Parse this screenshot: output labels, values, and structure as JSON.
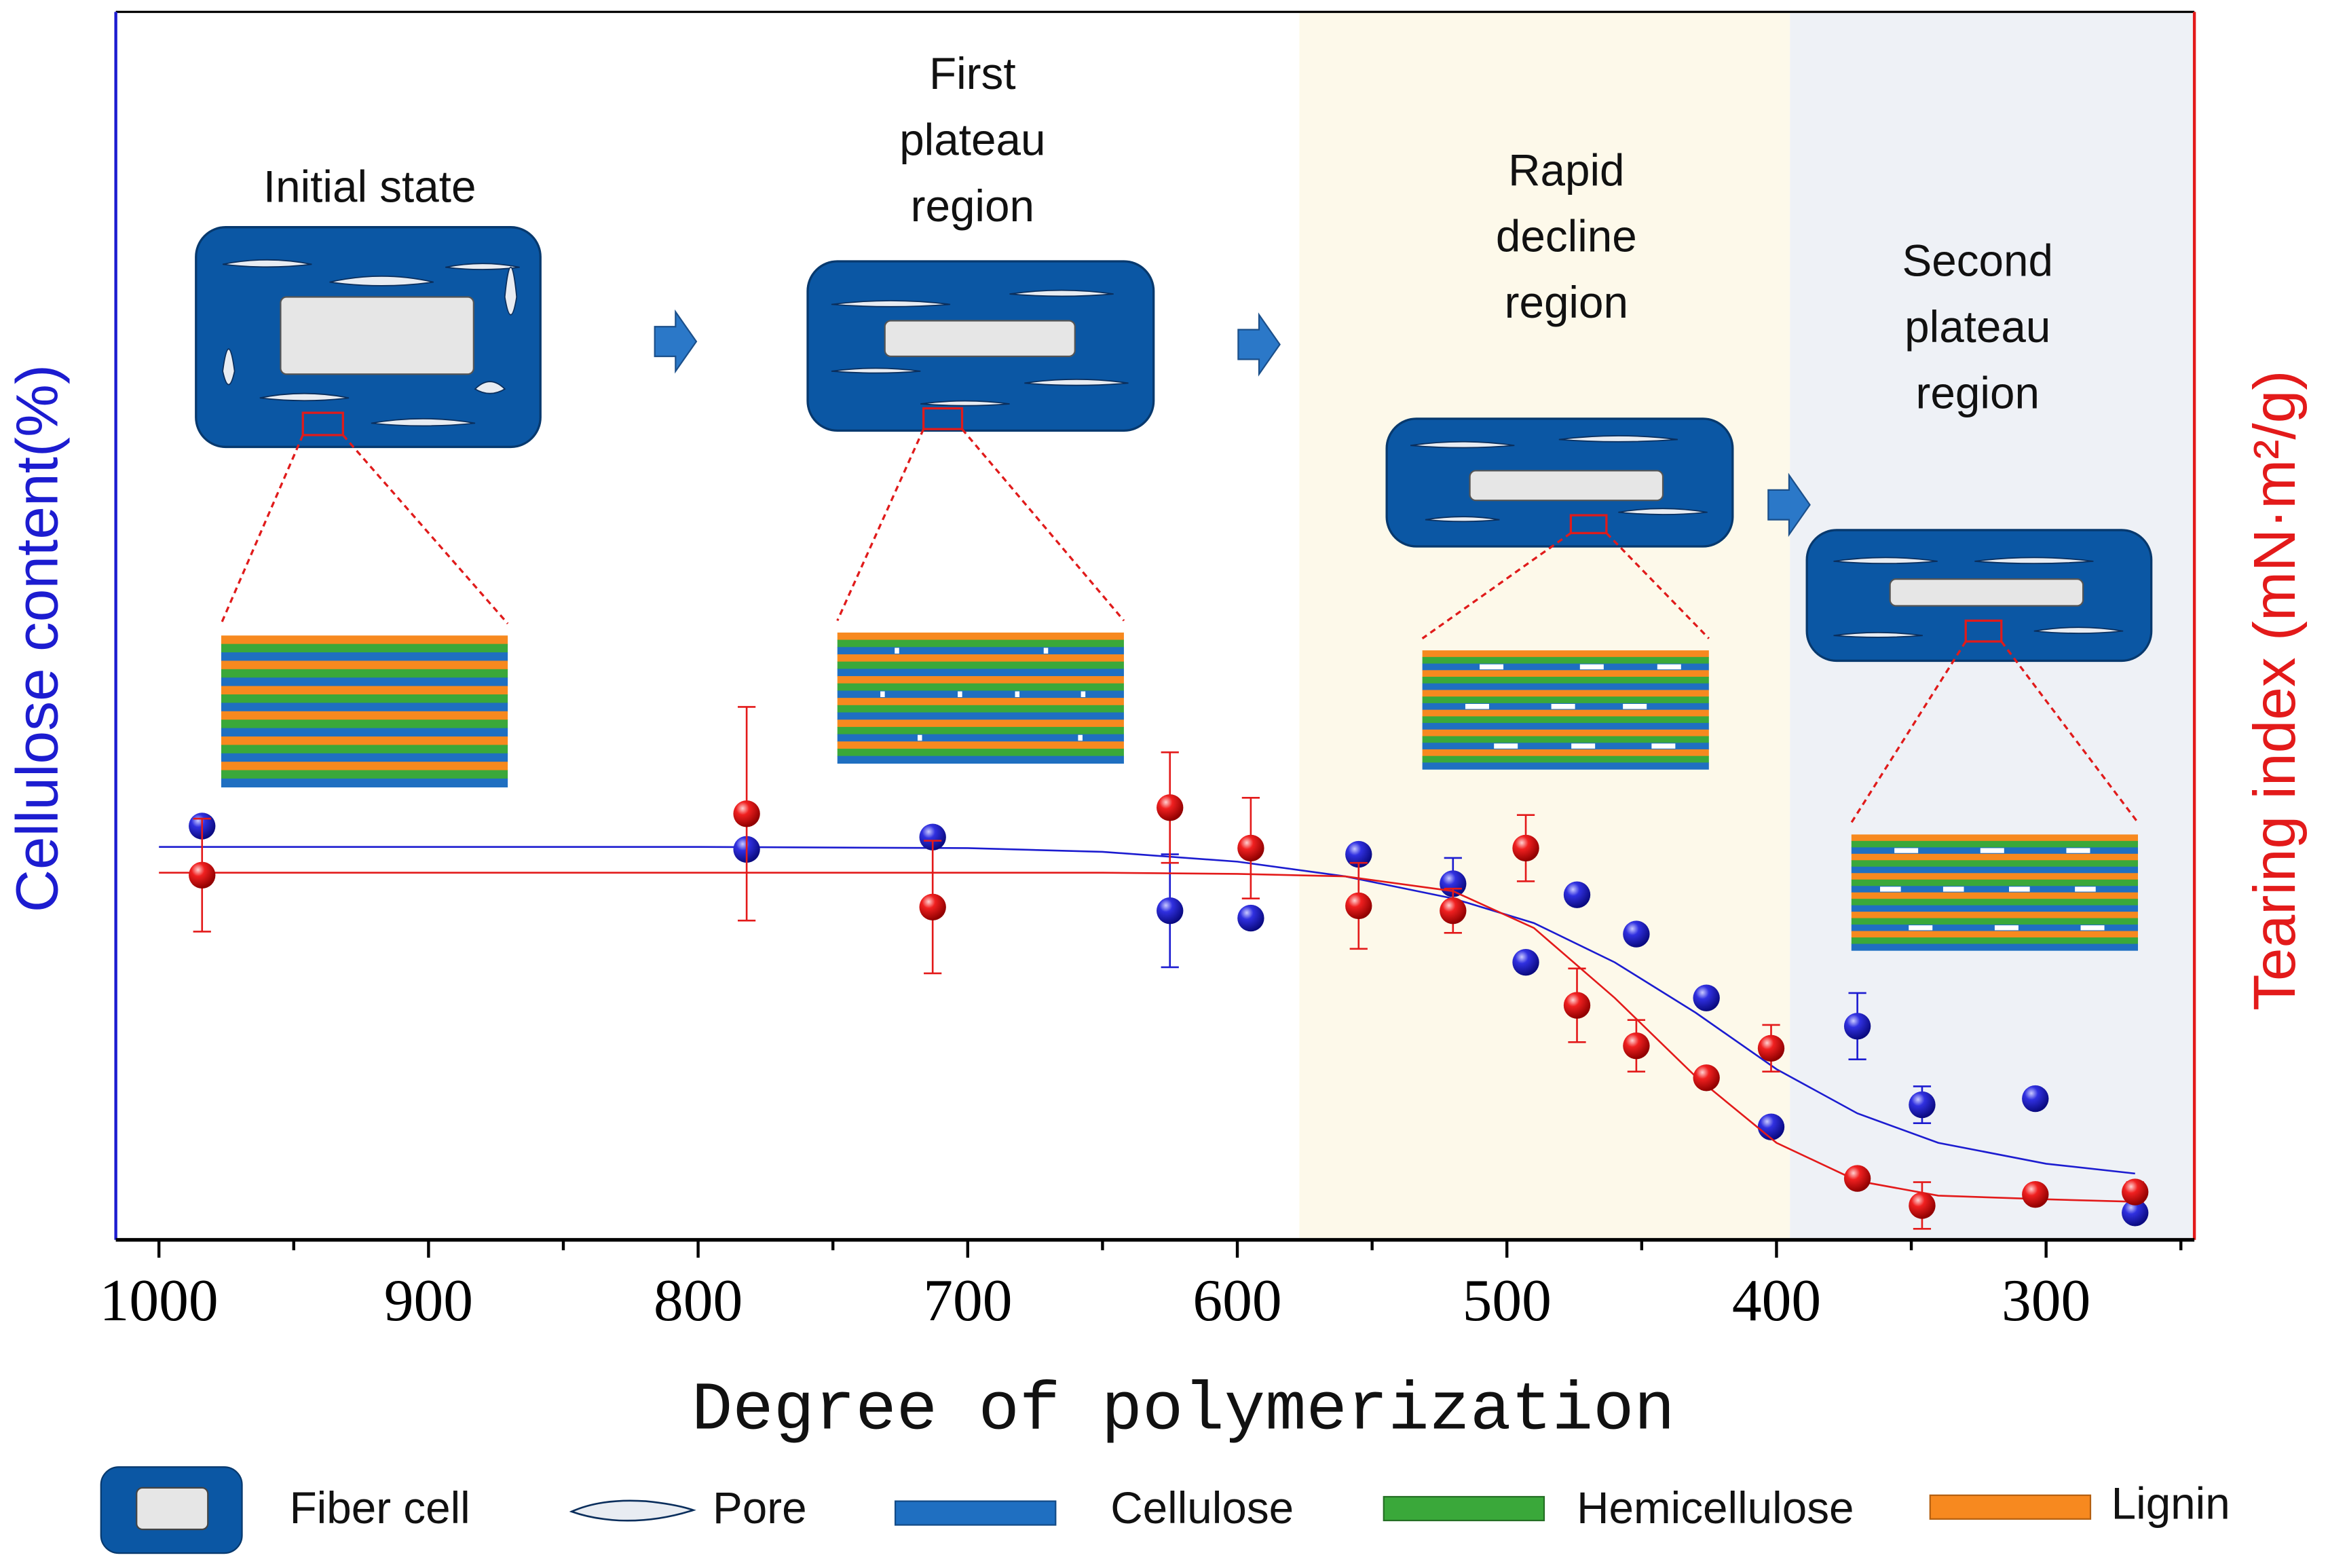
{
  "chart_data": {
    "type": "scatter",
    "xlabel": "Degree of polymerization",
    "ylabel": "Cellulose content(%)",
    "y2label": "Tearing index (mN·m²/g)",
    "xlim": [
      1016,
      245
    ],
    "xticks": [
      1000,
      900,
      800,
      700,
      600,
      500,
      400,
      300
    ],
    "xminorticks": [
      950,
      850,
      750,
      650,
      550,
      450,
      350,
      250
    ],
    "ylim": [
      0,
      100
    ],
    "y2lim": [
      0,
      100
    ],
    "regions": [
      {
        "x0": 577,
        "x1": 395,
        "color": "#fdf9ea"
      },
      {
        "x0": 395,
        "x1": 245,
        "color": "#eef1f6"
      }
    ],
    "series": [
      {
        "color": "#1c1cd0",
        "x": [
          984,
          782,
          713,
          625,
          595,
          555,
          520,
          493,
          474,
          452,
          426,
          402,
          370,
          346,
          304,
          267
        ],
        "values": [
          33.7,
          31.8,
          32.8,
          26.8,
          26.2,
          31.4,
          29.0,
          22.6,
          28.1,
          24.9,
          19.7,
          9.2,
          17.4,
          11.0,
          11.5,
          2.2
        ],
        "errors": [
          0.5,
          0.5,
          0.5,
          4.6,
          0.5,
          0.5,
          2.1,
          0.5,
          0.5,
          0.5,
          0.5,
          0.5,
          2.7,
          1.5,
          0.5,
          0.5
        ],
        "fit_x": [
          1000,
          900,
          800,
          700,
          650,
          600,
          560,
          520,
          490,
          460,
          430,
          400,
          370,
          340,
          300,
          267
        ],
        "fit": [
          32.0,
          32.0,
          32.0,
          31.9,
          31.6,
          30.8,
          29.6,
          27.8,
          25.8,
          22.6,
          18.5,
          13.9,
          10.3,
          7.9,
          6.2,
          5.4
        ]
      },
      {
        "color": "#e31a1a",
        "axis": "y2",
        "x": [
          984,
          782,
          713,
          625,
          595,
          555,
          520,
          493,
          474,
          452,
          426,
          402,
          370,
          346,
          304,
          267
        ],
        "values": [
          29.7,
          34.7,
          27.1,
          35.2,
          31.9,
          27.2,
          26.8,
          31.9,
          19.1,
          15.8,
          13.2,
          15.6,
          5.0,
          2.8,
          3.7,
          3.9
        ],
        "errors": [
          4.6,
          8.7,
          5.4,
          4.5,
          4.1,
          3.5,
          1.8,
          2.7,
          3.0,
          2.1,
          0.5,
          1.9,
          0.5,
          1.9,
          0.5,
          0.8
        ],
        "fit_x": [
          1000,
          900,
          800,
          700,
          650,
          600,
          560,
          520,
          490,
          460,
          430,
          400,
          370,
          340,
          300,
          267
        ],
        "fit": [
          29.9,
          29.9,
          29.9,
          29.9,
          29.9,
          29.8,
          29.6,
          28.4,
          25.4,
          19.7,
          13.3,
          7.9,
          4.8,
          3.6,
          3.3,
          3.1
        ]
      }
    ],
    "annotations": [
      {
        "lines": [
          "Initial state"
        ]
      },
      {
        "lines": [
          "First",
          "plateau",
          "region"
        ]
      },
      {
        "lines": [
          "Rapid",
          "decline",
          "region"
        ]
      },
      {
        "lines": [
          "Second",
          "plateau",
          "region"
        ]
      }
    ]
  },
  "legend": {
    "items": [
      "Fiber cell",
      "Pore",
      "Cellulose",
      "Hemicellulose",
      "Lignin"
    ]
  }
}
